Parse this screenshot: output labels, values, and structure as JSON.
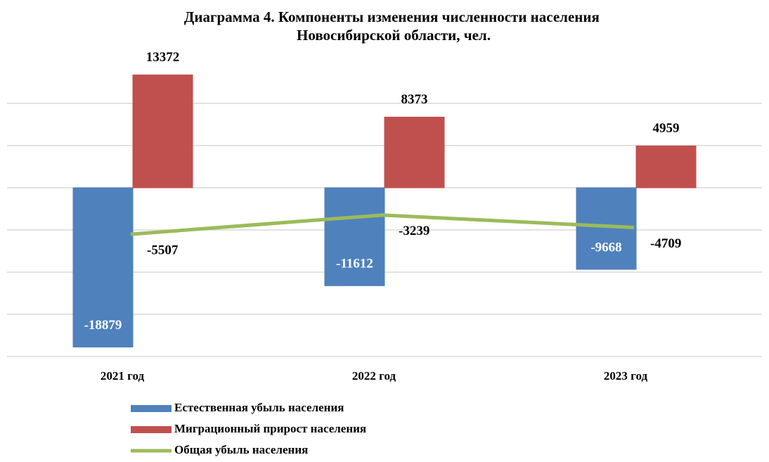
{
  "chart_data": {
    "type": "bar",
    "title": "Диаграмма 4. Компоненты изменения численности населения Новосибирской области, чел.",
    "categories": [
      "2021 год",
      "2022 год",
      "2023 год"
    ],
    "series": [
      {
        "name": "Естественная убыль населения",
        "color": "#4f81bd",
        "type": "bar",
        "values": [
          -18879,
          -11612,
          -9668
        ]
      },
      {
        "name": "Миграционный прирост населения",
        "color": "#c0504d",
        "type": "bar",
        "values": [
          13372,
          8373,
          4959
        ]
      },
      {
        "name": "Общая убыль населения",
        "color": "#9bbb59",
        "type": "line",
        "values": [
          -5507,
          -3239,
          -4709
        ]
      }
    ],
    "ylim": [
      -20000,
      15000
    ],
    "yticks": [
      -20000,
      -15000,
      -10000,
      -5000,
      0,
      5000,
      10000
    ],
    "grid": true
  }
}
